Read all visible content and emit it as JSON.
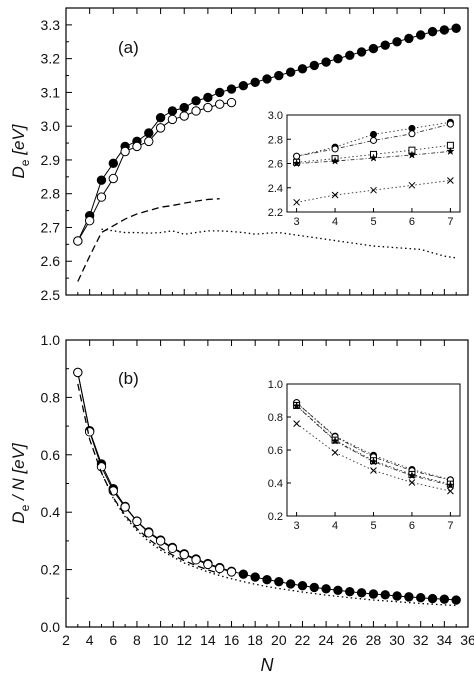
{
  "chart_data": [
    {
      "type": "line",
      "panel_label": "(a)",
      "xlabel": "",
      "ylabel_main": "D",
      "ylabel_sub": "e",
      "ylabel_unit": " [eV]",
      "xlim": [
        2,
        36
      ],
      "ylim": [
        2.5,
        3.35
      ],
      "x_ticks": [
        2,
        4,
        6,
        8,
        10,
        12,
        14,
        16,
        18,
        20,
        22,
        24,
        26,
        28,
        30,
        32,
        34,
        36
      ],
      "x_tick_labels_shown": false,
      "y_ticks": [
        2.5,
        2.6,
        2.7,
        2.8,
        2.9,
        3.0,
        3.1,
        3.2,
        3.3
      ],
      "y_tick_labels": [
        "2.5",
        "2.6",
        "2.7",
        "2.8",
        "2.9",
        "3.0",
        "3.1",
        "3.2",
        "3.3"
      ],
      "series": [
        {
          "marker": "filled-circle",
          "line": "solid",
          "x": [
            3,
            4,
            5,
            6,
            7,
            8,
            9,
            10,
            11,
            12,
            13,
            14,
            15,
            16,
            17,
            18,
            19,
            20,
            21,
            22,
            23,
            24,
            25,
            26,
            27,
            28,
            29,
            30,
            31,
            32,
            33,
            34,
            35
          ],
          "y": [
            2.66,
            2.735,
            2.84,
            2.89,
            2.94,
            2.955,
            2.98,
            3.025,
            3.045,
            3.055,
            3.075,
            3.085,
            3.1,
            3.11,
            3.12,
            3.13,
            3.14,
            3.15,
            3.16,
            3.17,
            3.18,
            3.19,
            3.2,
            3.21,
            3.22,
            3.23,
            3.24,
            3.25,
            3.26,
            3.27,
            3.28,
            3.285,
            3.29
          ]
        },
        {
          "marker": "open-circle",
          "line": "solid",
          "x": [
            3,
            4,
            5,
            6,
            7,
            8,
            9,
            10,
            11,
            12,
            13,
            14,
            15,
            16
          ],
          "y": [
            2.66,
            2.72,
            2.79,
            2.845,
            2.925,
            2.94,
            2.955,
            2.995,
            3.02,
            3.03,
            3.045,
            3.055,
            3.065,
            3.07
          ]
        },
        {
          "marker": "none",
          "line": "dashed",
          "x": [
            3,
            4,
            5,
            6,
            7,
            8,
            9,
            10,
            11,
            12,
            13,
            14,
            15
          ],
          "y": [
            2.54,
            2.615,
            2.685,
            2.705,
            2.725,
            2.74,
            2.75,
            2.76,
            2.765,
            2.772,
            2.778,
            2.783,
            2.785
          ]
        },
        {
          "marker": "none",
          "line": "dotted",
          "x": [
            5,
            6,
            7,
            8,
            9,
            10,
            11,
            12,
            13,
            14,
            15,
            16,
            17,
            18,
            19,
            20,
            22,
            24,
            26,
            28,
            30,
            32,
            34,
            35
          ],
          "y": [
            2.695,
            2.69,
            2.685,
            2.685,
            2.683,
            2.685,
            2.69,
            2.68,
            2.685,
            2.69,
            2.69,
            2.688,
            2.685,
            2.68,
            2.683,
            2.685,
            2.675,
            2.665,
            2.655,
            2.645,
            2.64,
            2.635,
            2.615,
            2.61
          ]
        }
      ],
      "inset": {
        "xlim": [
          2.75,
          7.25
        ],
        "ylim": [
          2.2,
          3.0
        ],
        "x_ticks": [
          3,
          4,
          5,
          6,
          7
        ],
        "x_tick_labels": [
          "3",
          "4",
          "5",
          "6",
          "7"
        ],
        "y_ticks": [
          2.2,
          2.4,
          2.6,
          2.8,
          3.0
        ],
        "y_tick_labels": [
          "2.2",
          "2.4",
          "2.6",
          "2.8",
          "3.0"
        ],
        "series": [
          {
            "marker": "filled-circle",
            "x": [
              3,
              4,
              5,
              6,
              7
            ],
            "y": [
              2.66,
              2.735,
              2.84,
              2.89,
              2.94
            ]
          },
          {
            "marker": "open-circle",
            "x": [
              3,
              4,
              5,
              6,
              7
            ],
            "y": [
              2.66,
              2.72,
              2.79,
              2.845,
              2.925
            ]
          },
          {
            "marker": "open-square",
            "x": [
              3,
              4,
              5,
              6,
              7
            ],
            "y": [
              2.61,
              2.64,
              2.675,
              2.71,
              2.75
            ]
          },
          {
            "marker": "star",
            "x": [
              3,
              4,
              5,
              6,
              7
            ],
            "y": [
              2.6,
              2.62,
              2.645,
              2.67,
              2.7
            ]
          },
          {
            "marker": "cross",
            "x": [
              3,
              4,
              5,
              6,
              7
            ],
            "y": [
              2.28,
              2.34,
              2.38,
              2.42,
              2.46
            ]
          }
        ]
      }
    },
    {
      "type": "line",
      "panel_label": "(b)",
      "xlabel": "N",
      "ylabel_main": "D",
      "ylabel_sub": "e",
      "ylabel_unit": " / N [eV]",
      "xlim": [
        2,
        36
      ],
      "ylim": [
        0.0,
        1.0
      ],
      "x_ticks": [
        2,
        4,
        6,
        8,
        10,
        12,
        14,
        16,
        18,
        20,
        22,
        24,
        26,
        28,
        30,
        32,
        34,
        36
      ],
      "x_tick_labels": [
        "2",
        "4",
        "6",
        "8",
        "10",
        "12",
        "14",
        "16",
        "18",
        "20",
        "22",
        "24",
        "26",
        "28",
        "30",
        "32",
        "34",
        "36"
      ],
      "y_ticks": [
        0.0,
        0.2,
        0.4,
        0.6,
        0.8,
        1.0
      ],
      "y_tick_labels": [
        "0.0",
        "0.2",
        "0.4",
        "0.6",
        "0.8",
        "1.0"
      ],
      "series": [
        {
          "marker": "filled-circle",
          "line": "solid",
          "x": [
            3,
            4,
            5,
            6,
            7,
            8,
            9,
            10,
            11,
            12,
            13,
            14,
            15,
            16,
            17,
            18,
            19,
            20,
            21,
            22,
            23,
            24,
            25,
            26,
            27,
            28,
            29,
            30,
            31,
            32,
            33,
            34,
            35
          ],
          "y": [
            0.887,
            0.684,
            0.568,
            0.482,
            0.42,
            0.369,
            0.331,
            0.303,
            0.277,
            0.255,
            0.237,
            0.221,
            0.207,
            0.194,
            0.184,
            0.174,
            0.165,
            0.158,
            0.15,
            0.144,
            0.138,
            0.133,
            0.128,
            0.123,
            0.119,
            0.115,
            0.112,
            0.108,
            0.105,
            0.102,
            0.099,
            0.097,
            0.094
          ]
        },
        {
          "marker": "open-circle",
          "line": "solid",
          "x": [
            3,
            4,
            5,
            6,
            7,
            8,
            9,
            10,
            11,
            12,
            13,
            14,
            15,
            16
          ],
          "y": [
            0.887,
            0.68,
            0.558,
            0.474,
            0.418,
            0.368,
            0.328,
            0.3,
            0.274,
            0.252,
            0.234,
            0.218,
            0.204,
            0.192
          ]
        },
        {
          "marker": "none",
          "line": "dashed",
          "x": [
            3,
            4,
            5,
            6,
            7,
            8,
            9,
            10,
            11,
            12,
            13,
            14,
            15
          ],
          "y": [
            0.847,
            0.654,
            0.537,
            0.451,
            0.389,
            0.343,
            0.306,
            0.276,
            0.251,
            0.231,
            0.214,
            0.199,
            0.186
          ]
        },
        {
          "marker": "none",
          "line": "dotted",
          "x": [
            5,
            6,
            7,
            8,
            9,
            10,
            11,
            12,
            13,
            14,
            15,
            16,
            17,
            18,
            19,
            20,
            22,
            24,
            26,
            28,
            30,
            32,
            34,
            35
          ],
          "y": [
            0.539,
            0.448,
            0.384,
            0.336,
            0.298,
            0.268,
            0.245,
            0.223,
            0.207,
            0.192,
            0.179,
            0.168,
            0.158,
            0.149,
            0.141,
            0.134,
            0.122,
            0.111,
            0.102,
            0.094,
            0.088,
            0.082,
            0.077,
            0.075
          ]
        }
      ],
      "inset": {
        "xlim": [
          2.75,
          7.25
        ],
        "ylim": [
          0.2,
          1.0
        ],
        "x_ticks": [
          3,
          4,
          5,
          6,
          7
        ],
        "x_tick_labels": [
          "3",
          "4",
          "5",
          "6",
          "7"
        ],
        "y_ticks": [
          0.2,
          0.4,
          0.6,
          0.8,
          1.0
        ],
        "y_tick_labels": [
          "0.2",
          "0.4",
          "0.6",
          "0.8",
          "1.0"
        ],
        "series": [
          {
            "marker": "filled-circle",
            "x": [
              3,
              4,
              5,
              6,
              7
            ],
            "y": [
              0.887,
              0.684,
              0.568,
              0.482,
              0.42
            ]
          },
          {
            "marker": "open-circle",
            "x": [
              3,
              4,
              5,
              6,
              7
            ],
            "y": [
              0.887,
              0.68,
              0.558,
              0.474,
              0.418
            ]
          },
          {
            "marker": "open-square",
            "x": [
              3,
              4,
              5,
              6,
              7
            ],
            "y": [
              0.87,
              0.66,
              0.535,
              0.452,
              0.393
            ]
          },
          {
            "marker": "star",
            "x": [
              3,
              4,
              5,
              6,
              7
            ],
            "y": [
              0.867,
              0.655,
              0.529,
              0.445,
              0.386
            ]
          },
          {
            "marker": "cross",
            "x": [
              3,
              4,
              5,
              6,
              7
            ],
            "y": [
              0.76,
              0.585,
              0.476,
              0.403,
              0.351
            ]
          }
        ]
      }
    }
  ]
}
